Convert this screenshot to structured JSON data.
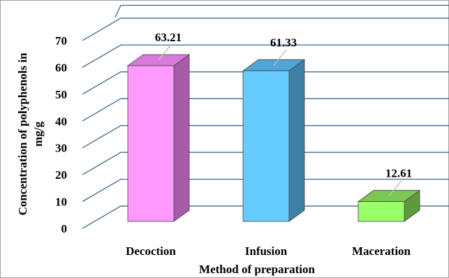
{
  "chart_data": {
    "type": "bar",
    "style": "3d-column",
    "categories": [
      "Decoction",
      "Infusion",
      "Maceration"
    ],
    "values": [
      63.21,
      61.33,
      12.61
    ],
    "data_labels": [
      "63.21",
      "61.33",
      "12.61"
    ],
    "ylabel": "Concentration of polyphenols in mg/g",
    "ylabel_lines": [
      "Concentration of polyphenols in",
      "mg/g"
    ],
    "xlabel": "Method of preparation",
    "ylim": [
      0,
      70
    ],
    "yticks": [
      "0",
      "10",
      "20",
      "30",
      "40",
      "50",
      "60",
      "70"
    ],
    "grid": true,
    "legend": "none",
    "colors": [
      {
        "front": "#ff99ff",
        "side": "#a85ca8",
        "top": "#d97ad9"
      },
      {
        "front": "#66ccff",
        "side": "#3f7fa6",
        "top": "#4ea5d6"
      },
      {
        "front": "#99ff66",
        "side": "#5c9a3c",
        "top": "#7cc653"
      }
    ],
    "grid_color": "#2f5a85",
    "leader_color": "#bfbfbf"
  }
}
